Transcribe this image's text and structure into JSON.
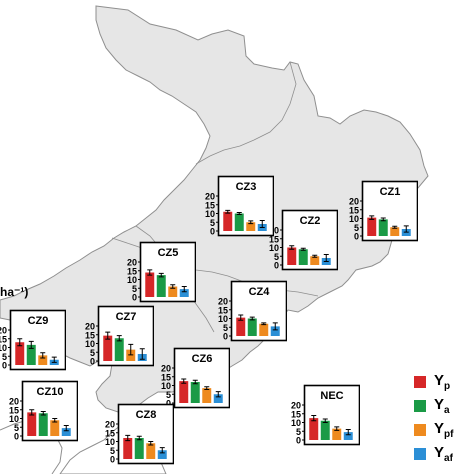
{
  "unit_label": "ha⁻¹)",
  "colors": {
    "Yp": "#d62728",
    "Ya": "#1a9a46",
    "Ypf": "#ee8a1f",
    "Yaf": "#2b8fd6",
    "land": "#e6e6e6",
    "border": "#8f8f8f"
  },
  "legend": [
    {
      "main": "Y",
      "sub": "p",
      "color_key": "Yp"
    },
    {
      "main": "Y",
      "sub": "a",
      "color_key": "Ya"
    },
    {
      "main": "Y",
      "sub": "pf",
      "color_key": "Ypf"
    },
    {
      "main": "Y",
      "sub": "af",
      "color_key": "Yaf"
    }
  ],
  "chart_data": {
    "type": "bar",
    "series_names": [
      "Yp",
      "Ya",
      "Ypf",
      "Yaf"
    ],
    "ylim": [
      0,
      20
    ],
    "yticks": [
      "0",
      "5",
      "10",
      "15",
      "20"
    ],
    "panels": [
      {
        "label": "CZ1",
        "values": [
          10.5,
          9.5,
          5,
          4
        ],
        "errors": [
          1,
          0.8,
          0.6,
          1.8
        ]
      },
      {
        "label": "CZ2",
        "values": [
          10,
          9,
          5,
          4
        ],
        "errors": [
          1,
          0.6,
          0.6,
          2
        ]
      },
      {
        "label": "CZ3",
        "values": [
          11,
          10,
          5,
          4
        ],
        "errors": [
          0.8,
          0.6,
          0.8,
          2
        ]
      },
      {
        "label": "CZ4",
        "values": [
          10.5,
          10,
          7,
          5.5
        ],
        "errors": [
          1.5,
          0.8,
          0.5,
          2
        ]
      },
      {
        "label": "CZ5",
        "values": [
          14,
          12.5,
          6,
          4.5
        ],
        "errors": [
          1.5,
          1,
          1,
          1.5
        ]
      },
      {
        "label": "CZ6",
        "values": [
          12.5,
          12,
          8.5,
          5
        ],
        "errors": [
          1.2,
          1,
          0.8,
          1.5
        ]
      },
      {
        "label": "CZ7",
        "values": [
          14.5,
          13,
          6.5,
          4
        ],
        "errors": [
          2,
          1.5,
          3,
          3
        ]
      },
      {
        "label": "CZ8",
        "values": [
          12,
          12,
          9,
          5
        ],
        "errors": [
          1.5,
          1,
          1,
          1.5
        ]
      },
      {
        "label": "CZ9",
        "values": [
          13,
          11.5,
          5.5,
          3
        ],
        "errors": [
          2,
          2,
          1.5,
          1.5
        ]
      },
      {
        "label": "CZ10",
        "values": [
          13.5,
          13,
          9,
          4.5
        ],
        "errors": [
          1.5,
          1,
          1,
          1.5
        ]
      },
      {
        "label": "NEC",
        "values": [
          12.5,
          11,
          6.5,
          4.5
        ],
        "errors": [
          1.5,
          1,
          1,
          1.5
        ]
      }
    ]
  }
}
